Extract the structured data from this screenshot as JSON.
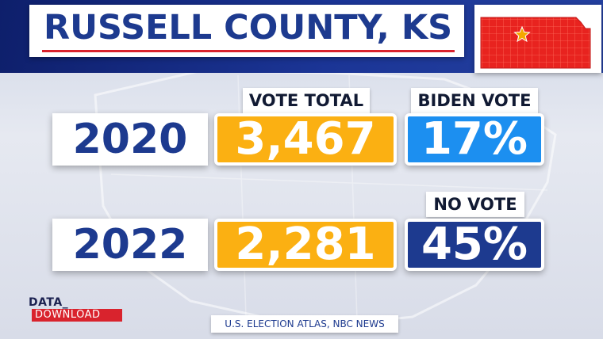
{
  "title": "RUSSELL COUNTY, KS",
  "headers": {
    "vote_total": "VOTE TOTAL",
    "biden_vote": "BIDEN VOTE",
    "no_vote": "NO VOTE"
  },
  "rows": [
    {
      "year": "2020",
      "total": "3,467",
      "pct": "17%"
    },
    {
      "year": "2022",
      "total": "2,281",
      "pct": "45%"
    }
  ],
  "logo": {
    "line1": "DATA_",
    "line2": "DOWNLOAD"
  },
  "source": "U.S. ELECTION ATLAS, NBC NEWS",
  "colors": {
    "navy": "#1d3a8f",
    "orange": "#fbb012",
    "light_blue": "#1c8ff0",
    "red": "#d9232d",
    "kansas_fill": "#e8231f",
    "star": "#f5a800"
  },
  "map_icon": "kansas-state-map-icon",
  "marker_icon": "star-icon"
}
